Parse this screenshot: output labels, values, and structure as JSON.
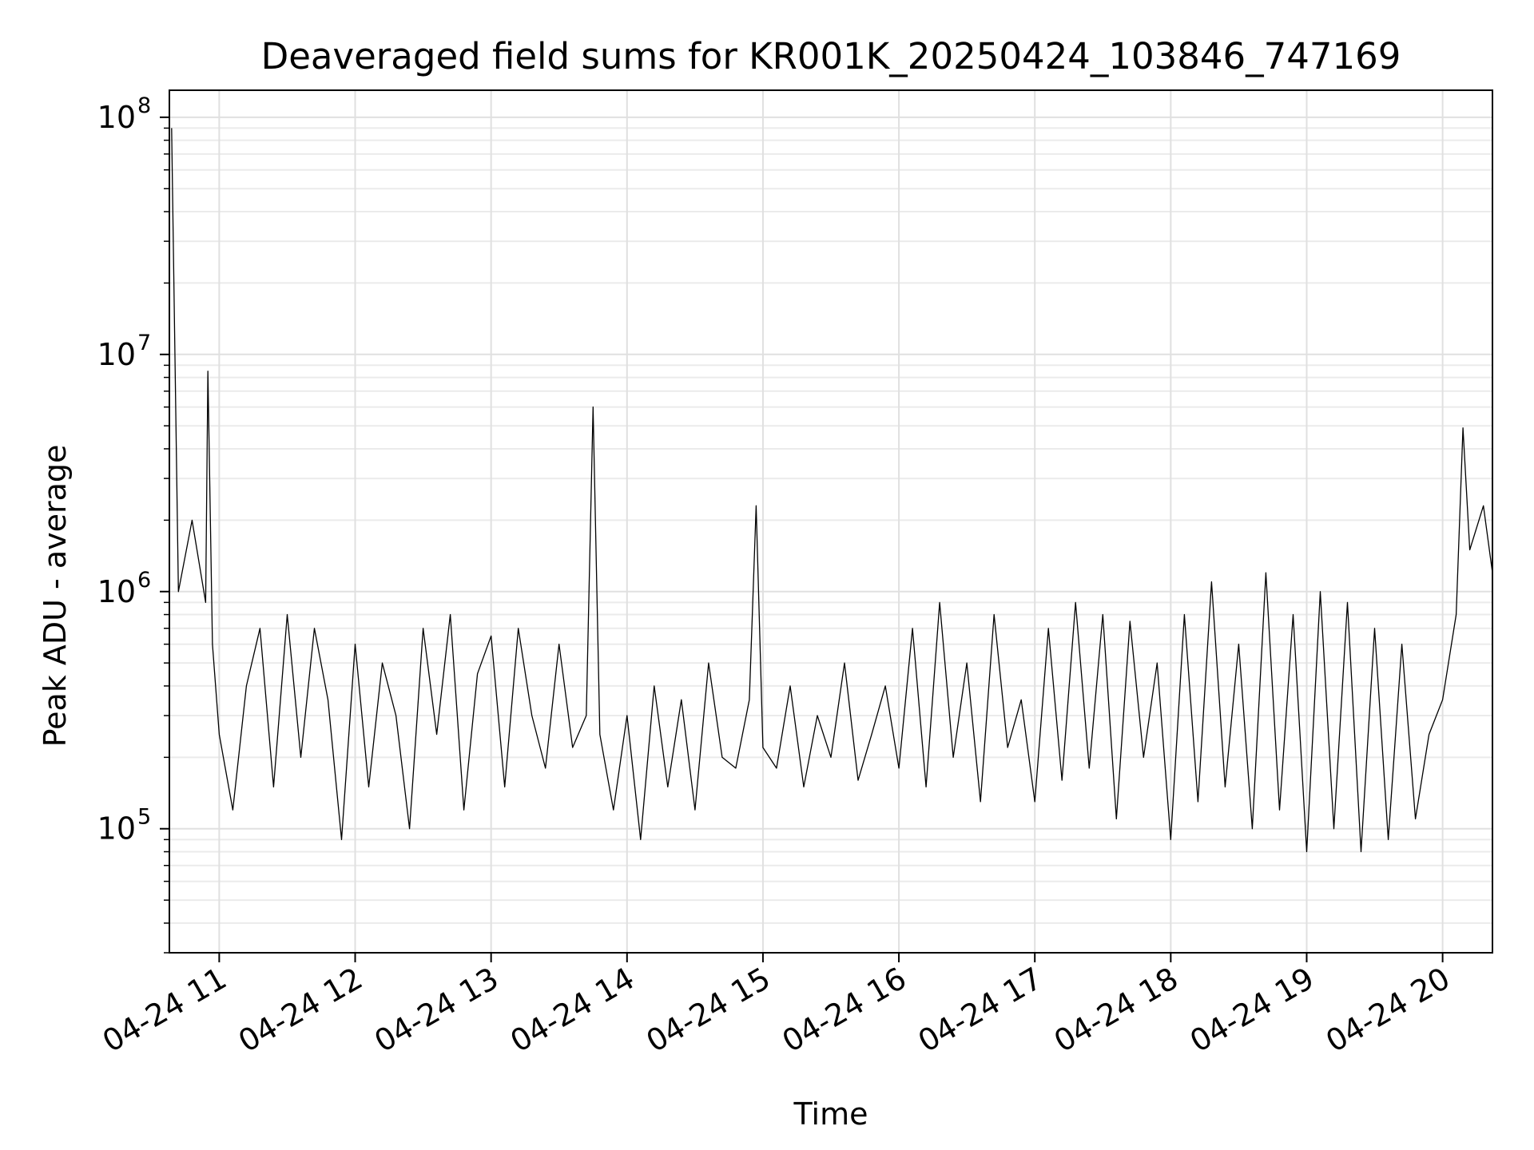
{
  "chart_data": {
    "type": "line",
    "title": "Deaveraged field sums for KR001K_20250424_103846_747169",
    "xlabel": "Time",
    "ylabel": "Peak ADU - average",
    "y_scale": "log",
    "ylim": [
      30000,
      130000000
    ],
    "xlim": [
      "2025-04-24 10:38",
      "2025-04-24 20:22"
    ],
    "grid": true,
    "x_ticks": [
      {
        "t": "2025-04-24 11:00",
        "label": "04-24 11"
      },
      {
        "t": "2025-04-24 12:00",
        "label": "04-24 12"
      },
      {
        "t": "2025-04-24 13:00",
        "label": "04-24 13"
      },
      {
        "t": "2025-04-24 14:00",
        "label": "04-24 14"
      },
      {
        "t": "2025-04-24 15:00",
        "label": "04-24 15"
      },
      {
        "t": "2025-04-24 16:00",
        "label": "04-24 16"
      },
      {
        "t": "2025-04-24 17:00",
        "label": "04-24 17"
      },
      {
        "t": "2025-04-24 18:00",
        "label": "04-24 18"
      },
      {
        "t": "2025-04-24 19:00",
        "label": "04-24 19"
      },
      {
        "t": "2025-04-24 20:00",
        "label": "04-24 20"
      }
    ],
    "y_ticks": [
      {
        "value": 100000,
        "base": "10",
        "exp": "5"
      },
      {
        "value": 1000000,
        "base": "10",
        "exp": "6"
      },
      {
        "value": 10000000,
        "base": "10",
        "exp": "7"
      },
      {
        "value": 100000000,
        "base": "10",
        "exp": "8"
      }
    ],
    "series": [
      {
        "color": "#000000",
        "x": [
          "2025-04-24 10:39",
          "2025-04-24 10:42",
          "2025-04-24 10:48",
          "2025-04-24 10:54",
          "2025-04-24 10:55",
          "2025-04-24 10:57",
          "2025-04-24 11:00",
          "2025-04-24 11:06",
          "2025-04-24 11:12",
          "2025-04-24 11:18",
          "2025-04-24 11:24",
          "2025-04-24 11:30",
          "2025-04-24 11:36",
          "2025-04-24 11:42",
          "2025-04-24 11:48",
          "2025-04-24 11:54",
          "2025-04-24 12:00",
          "2025-04-24 12:06",
          "2025-04-24 12:12",
          "2025-04-24 12:18",
          "2025-04-24 12:24",
          "2025-04-24 12:30",
          "2025-04-24 12:36",
          "2025-04-24 12:42",
          "2025-04-24 12:48",
          "2025-04-24 12:54",
          "2025-04-24 13:00",
          "2025-04-24 13:06",
          "2025-04-24 13:12",
          "2025-04-24 13:18",
          "2025-04-24 13:24",
          "2025-04-24 13:30",
          "2025-04-24 13:36",
          "2025-04-24 13:42",
          "2025-04-24 13:45",
          "2025-04-24 13:48",
          "2025-04-24 13:54",
          "2025-04-24 14:00",
          "2025-04-24 14:06",
          "2025-04-24 14:12",
          "2025-04-24 14:18",
          "2025-04-24 14:24",
          "2025-04-24 14:30",
          "2025-04-24 14:36",
          "2025-04-24 14:42",
          "2025-04-24 14:48",
          "2025-04-24 14:54",
          "2025-04-24 14:57",
          "2025-04-24 15:00",
          "2025-04-24 15:06",
          "2025-04-24 15:12",
          "2025-04-24 15:18",
          "2025-04-24 15:24",
          "2025-04-24 15:30",
          "2025-04-24 15:36",
          "2025-04-24 15:42",
          "2025-04-24 15:48",
          "2025-04-24 15:54",
          "2025-04-24 16:00",
          "2025-04-24 16:06",
          "2025-04-24 16:12",
          "2025-04-24 16:18",
          "2025-04-24 16:24",
          "2025-04-24 16:30",
          "2025-04-24 16:36",
          "2025-04-24 16:42",
          "2025-04-24 16:48",
          "2025-04-24 16:54",
          "2025-04-24 17:00",
          "2025-04-24 17:06",
          "2025-04-24 17:12",
          "2025-04-24 17:18",
          "2025-04-24 17:24",
          "2025-04-24 17:30",
          "2025-04-24 17:36",
          "2025-04-24 17:42",
          "2025-04-24 17:48",
          "2025-04-24 17:54",
          "2025-04-24 18:00",
          "2025-04-24 18:06",
          "2025-04-24 18:12",
          "2025-04-24 18:18",
          "2025-04-24 18:24",
          "2025-04-24 18:30",
          "2025-04-24 18:36",
          "2025-04-24 18:42",
          "2025-04-24 18:48",
          "2025-04-24 18:54",
          "2025-04-24 19:00",
          "2025-04-24 19:06",
          "2025-04-24 19:12",
          "2025-04-24 19:18",
          "2025-04-24 19:24",
          "2025-04-24 19:30",
          "2025-04-24 19:36",
          "2025-04-24 19:42",
          "2025-04-24 19:48",
          "2025-04-24 19:54",
          "2025-04-24 20:00",
          "2025-04-24 20:06",
          "2025-04-24 20:09",
          "2025-04-24 20:12",
          "2025-04-24 20:18",
          "2025-04-24 20:22"
        ],
        "y": [
          90000000,
          1000000,
          2000000,
          900000,
          8500000,
          600000,
          250000,
          120000,
          400000,
          700000,
          150000,
          800000,
          200000,
          700000,
          350000,
          90000,
          600000,
          150000,
          500000,
          300000,
          100000,
          700000,
          250000,
          800000,
          120000,
          450000,
          650000,
          150000,
          700000,
          300000,
          180000,
          600000,
          220000,
          300000,
          6000000,
          250000,
          120000,
          300000,
          90000,
          400000,
          150000,
          350000,
          120000,
          500000,
          200000,
          180000,
          350000,
          2300000,
          220000,
          180000,
          400000,
          150000,
          300000,
          200000,
          500000,
          160000,
          250000,
          400000,
          180000,
          700000,
          150000,
          900000,
          200000,
          500000,
          130000,
          800000,
          220000,
          350000,
          130000,
          700000,
          160000,
          900000,
          180000,
          800000,
          110000,
          750000,
          200000,
          500000,
          90000,
          800000,
          130000,
          1100000,
          150000,
          600000,
          100000,
          1200000,
          120000,
          800000,
          80000,
          1000000,
          100000,
          900000,
          80000,
          700000,
          90000,
          600000,
          110000,
          250000,
          350000,
          800000,
          4900000,
          1500000,
          2300000,
          1200000
        ]
      }
    ]
  }
}
